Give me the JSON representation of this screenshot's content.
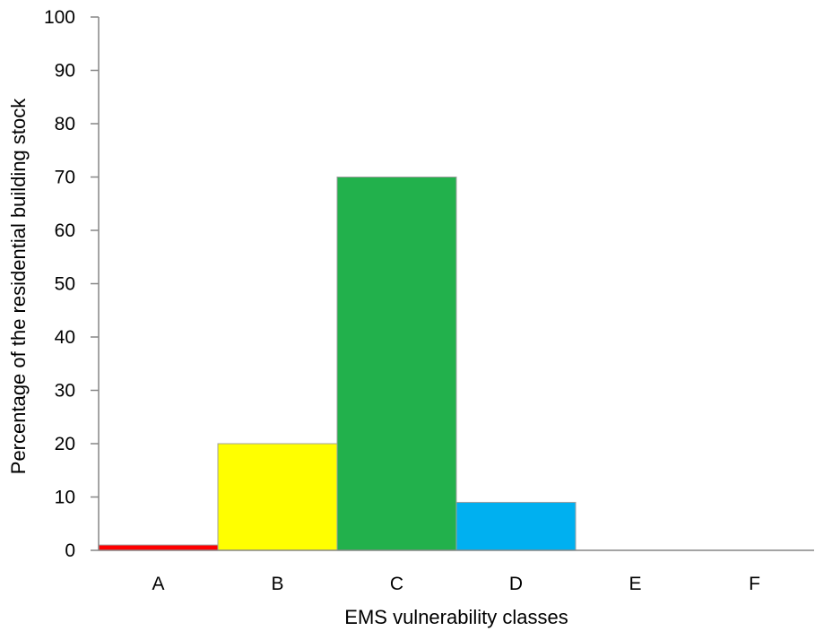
{
  "chart_data": {
    "type": "bar",
    "title": "",
    "xlabel": "EMS vulnerability classes",
    "ylabel": "Percentage of the residential building stock",
    "categories": [
      "A",
      "B",
      "C",
      "D",
      "E",
      "F"
    ],
    "values": [
      1,
      20,
      70,
      9,
      0,
      0
    ],
    "colors": [
      "#ff0000",
      "#ffff00",
      "#22b14c",
      "#00b0f0",
      "#ffffff",
      "#ffffff"
    ],
    "ylim": [
      0,
      100
    ],
    "yticks": [
      0,
      10,
      20,
      30,
      40,
      50,
      60,
      70,
      80,
      90,
      100
    ],
    "grid": false,
    "legend": "none"
  }
}
